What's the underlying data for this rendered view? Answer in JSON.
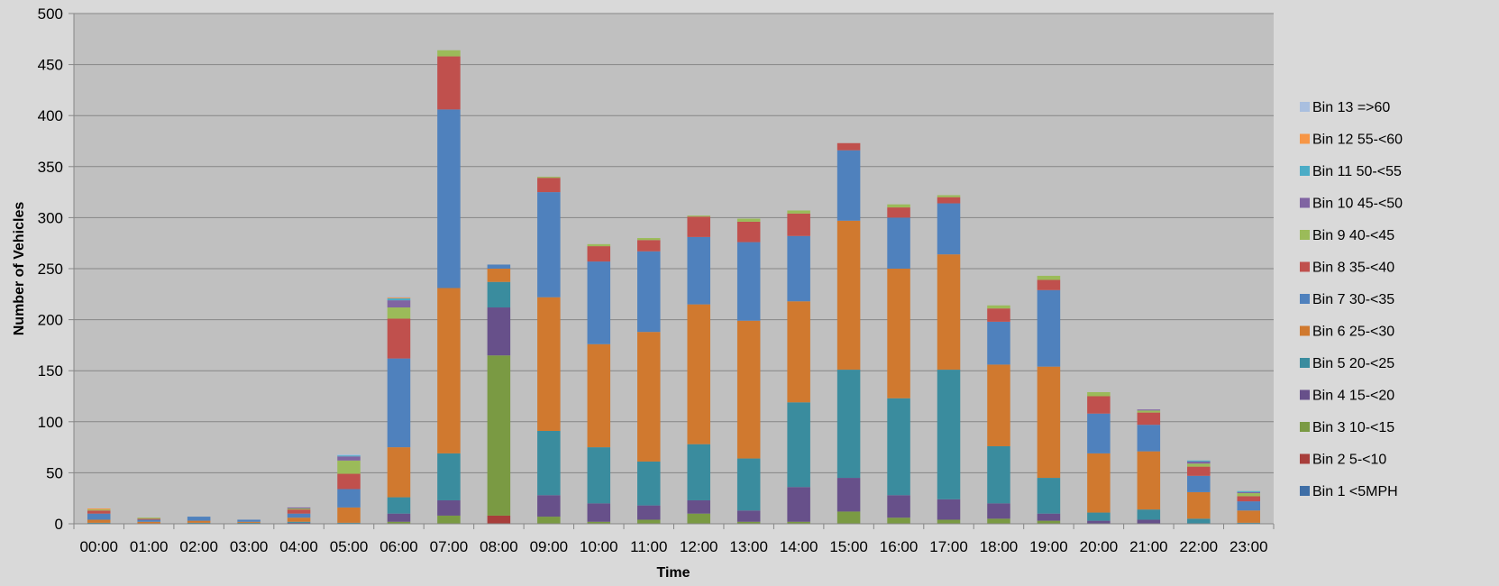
{
  "chart_data": {
    "type": "stacked-bar",
    "xlabel": "Time",
    "ylabel": "Number of Vehicles",
    "ylim": [
      0,
      500
    ],
    "yticks": [
      0,
      50,
      100,
      150,
      200,
      250,
      300,
      350,
      400,
      450,
      500
    ],
    "grid": true,
    "legend_position": "right",
    "categories": [
      "00:00",
      "01:00",
      "02:00",
      "03:00",
      "04:00",
      "05:00",
      "06:00",
      "07:00",
      "08:00",
      "09:00",
      "10:00",
      "11:00",
      "12:00",
      "13:00",
      "14:00",
      "15:00",
      "16:00",
      "17:00",
      "18:00",
      "19:00",
      "20:00",
      "21:00",
      "22:00",
      "23:00"
    ],
    "series": [
      {
        "name": "Bin 1 <5MPH",
        "color": "#3f6ea6",
        "values": [
          0,
          0,
          0,
          0,
          0,
          0,
          0,
          0,
          0,
          0,
          0,
          0,
          0,
          0,
          0,
          0,
          0,
          0,
          0,
          0,
          0,
          0,
          0,
          0
        ]
      },
      {
        "name": "Bin 2 5-<10",
        "color": "#a83e3b",
        "values": [
          0,
          0,
          0,
          0,
          0,
          0,
          0,
          0,
          8,
          0,
          0,
          0,
          0,
          0,
          0,
          0,
          0,
          0,
          0,
          0,
          0,
          0,
          0,
          0
        ]
      },
      {
        "name": "Bin 3 10-<15",
        "color": "#7a9a43",
        "values": [
          0,
          0,
          0,
          0,
          0,
          0,
          2,
          8,
          157,
          7,
          2,
          4,
          10,
          2,
          2,
          12,
          6,
          4,
          5,
          3,
          0,
          0,
          0,
          0
        ]
      },
      {
        "name": "Bin 4 15-<20",
        "color": "#67508a",
        "values": [
          0,
          0,
          0,
          0,
          1,
          0,
          8,
          15,
          47,
          21,
          18,
          14,
          13,
          11,
          34,
          33,
          22,
          20,
          15,
          7,
          3,
          4,
          0,
          0
        ]
      },
      {
        "name": "Bin 5 20-<25",
        "color": "#3a8c9e",
        "values": [
          1,
          0,
          1,
          1,
          1,
          1,
          16,
          46,
          25,
          63,
          55,
          43,
          55,
          51,
          83,
          106,
          95,
          127,
          56,
          35,
          8,
          10,
          5,
          1
        ]
      },
      {
        "name": "Bin 6 25-<30",
        "color": "#d0792f",
        "values": [
          3,
          2,
          2,
          1,
          4,
          15,
          49,
          162,
          13,
          131,
          101,
          127,
          137,
          135,
          99,
          146,
          127,
          113,
          80,
          109,
          58,
          57,
          26,
          12
        ]
      },
      {
        "name": "Bin 7 30-<35",
        "color": "#4f81bd",
        "values": [
          6,
          2,
          4,
          2,
          4,
          18,
          87,
          175,
          4,
          103,
          81,
          79,
          66,
          77,
          64,
          69,
          50,
          50,
          42,
          75,
          39,
          26,
          16,
          9
        ]
      },
      {
        "name": "Bin 8 35-<40",
        "color": "#c0504d",
        "values": [
          3,
          1,
          0,
          0,
          4,
          15,
          39,
          52,
          0,
          14,
          15,
          11,
          20,
          20,
          22,
          7,
          10,
          6,
          13,
          10,
          17,
          12,
          9,
          5
        ]
      },
      {
        "name": "Bin 9 40-<45",
        "color": "#9bbb59",
        "values": [
          1,
          1,
          0,
          0,
          1,
          13,
          11,
          6,
          0,
          1,
          2,
          2,
          1,
          3,
          3,
          0,
          3,
          2,
          3,
          4,
          4,
          2,
          3,
          3
        ]
      },
      {
        "name": "Bin 10 45-<50",
        "color": "#8064a2",
        "values": [
          0,
          0,
          0,
          0,
          1,
          4,
          7,
          0,
          0,
          0,
          0,
          0,
          0,
          0,
          0,
          0,
          0,
          0,
          0,
          0,
          0,
          1,
          2,
          1
        ]
      },
      {
        "name": "Bin 11 50-<55",
        "color": "#4bacc6",
        "values": [
          0,
          0,
          0,
          0,
          0,
          1,
          2,
          0,
          0,
          0,
          0,
          0,
          0,
          0,
          0,
          0,
          0,
          0,
          0,
          0,
          0,
          0,
          1,
          1
        ]
      },
      {
        "name": "Bin 12 55-<60",
        "color": "#f79646",
        "values": [
          1,
          0,
          0,
          0,
          0,
          0,
          1,
          0,
          0,
          0,
          0,
          0,
          0,
          0,
          0,
          0,
          0,
          0,
          0,
          0,
          0,
          0,
          0,
          0
        ]
      },
      {
        "name": "Bin 13 =>60",
        "color": "#a9bfdf",
        "values": [
          0,
          0,
          0,
          0,
          0,
          1,
          1,
          0,
          0,
          0,
          0,
          0,
          0,
          0,
          0,
          0,
          0,
          0,
          0,
          0,
          0,
          0,
          0,
          0
        ]
      }
    ]
  },
  "colors": {
    "page_background": "#d9d9d9",
    "plot_background": "#c0c0c0",
    "gridline": "#868686"
  }
}
